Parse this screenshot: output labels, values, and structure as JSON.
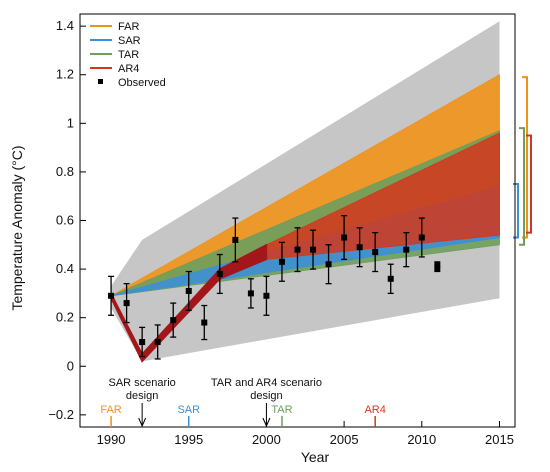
{
  "colors": {
    "FAR": "#f0921a",
    "SAR": "#3c8fd8",
    "TAR": "#6e9e5c",
    "AR4": "#d4361c",
    "gray": "#c6c6c6",
    "observed": "#000000"
  },
  "chart_data": {
    "type": "area",
    "xlabel": "Year",
    "ylabel": "Temperature Anomaly (°C)",
    "xlim": [
      1988,
      2016
    ],
    "ylim": [
      -0.25,
      1.45
    ],
    "xticks": [
      1990,
      1995,
      2000,
      2005,
      2010,
      2015
    ],
    "yticks": [
      -0.2,
      0,
      0.2,
      0.4,
      0.6,
      0.8,
      1,
      1.2,
      1.4
    ],
    "ytick_labels": [
      "−0.2",
      "0",
      "0.2",
      "0.4",
      "0.6",
      "0.8",
      "1",
      "1.2",
      "1.4"
    ],
    "grid": false,
    "legend": {
      "position": "top-left",
      "entries": [
        {
          "label": "FAR",
          "key": "FAR",
          "kind": "line"
        },
        {
          "label": "SAR",
          "key": "SAR",
          "kind": "line"
        },
        {
          "label": "TAR",
          "key": "TAR",
          "kind": "line"
        },
        {
          "label": "AR4",
          "key": "AR4",
          "kind": "line"
        },
        {
          "label": "Observed",
          "key": "observed",
          "kind": "marker"
        }
      ]
    },
    "gray_envelope": {
      "x": [
        1990,
        1992,
        2015
      ],
      "upper": [
        0.33,
        0.52,
        1.42
      ],
      "lower": [
        0.24,
        0.02,
        0.28
      ]
    },
    "projections": [
      {
        "name": "FAR",
        "key": "FAR",
        "x": [
          1990,
          2015
        ],
        "upper": [
          0.29,
          1.2
        ],
        "lower": [
          0.29,
          0.6
        ]
      },
      {
        "name": "TAR",
        "key": "TAR",
        "x": [
          1990,
          2015
        ],
        "upper": [
          0.29,
          0.97
        ],
        "lower": [
          0.29,
          0.5
        ]
      },
      {
        "name": "SAR",
        "key": "SAR",
        "x": [
          1990,
          2015
        ],
        "upper": [
          0.29,
          0.74
        ],
        "lower": [
          0.29,
          0.53
        ]
      },
      {
        "name": "AR4",
        "key": "AR4",
        "x": [
          1990,
          1992,
          1997,
          2000,
          2015
        ],
        "upper": [
          0.3,
          0.05,
          0.4,
          0.5,
          0.96
        ],
        "lower": [
          0.28,
          0.02,
          0.36,
          0.44,
          0.54
        ]
      }
    ],
    "range_bars": [
      {
        "key": "FAR",
        "low": 0.53,
        "high": 1.19
      },
      {
        "key": "SAR",
        "low": 0.53,
        "high": 0.75
      },
      {
        "key": "TAR",
        "low": 0.5,
        "high": 0.98
      },
      {
        "key": "AR4",
        "low": 0.55,
        "high": 0.95
      }
    ],
    "observed": {
      "x": [
        1990,
        1991,
        1992,
        1993,
        1994,
        1995,
        1996,
        1997,
        1998,
        1999,
        2000,
        2001,
        2002,
        2003,
        2004,
        2005,
        2006,
        2007,
        2008,
        2009,
        2010,
        2011
      ],
      "y": [
        0.29,
        0.26,
        0.1,
        0.1,
        0.19,
        0.31,
        0.18,
        0.38,
        0.52,
        0.3,
        0.29,
        0.43,
        0.48,
        0.48,
        0.42,
        0.53,
        0.49,
        0.47,
        0.36,
        0.48,
        0.53,
        0.42
      ],
      "y_err": [
        0.08,
        0.08,
        0.06,
        0.07,
        0.07,
        0.08,
        0.07,
        0.08,
        0.09,
        0.06,
        0.08,
        0.08,
        0.09,
        0.08,
        0.08,
        0.09,
        0.08,
        0.08,
        0.06,
        0.07,
        0.08,
        0
      ]
    },
    "annotations": [
      {
        "text": "SAR scenario\ndesign",
        "year": 1992
      },
      {
        "text": "TAR and AR4 scenario\ndesign",
        "year": 2000
      }
    ],
    "report_markers": [
      {
        "label": "FAR",
        "key": "FAR",
        "year": 1990
      },
      {
        "label": "SAR",
        "key": "SAR",
        "year": 1995
      },
      {
        "label": "TAR",
        "key": "TAR",
        "year": 2001
      },
      {
        "label": "AR4",
        "key": "AR4",
        "year": 2007
      }
    ]
  }
}
